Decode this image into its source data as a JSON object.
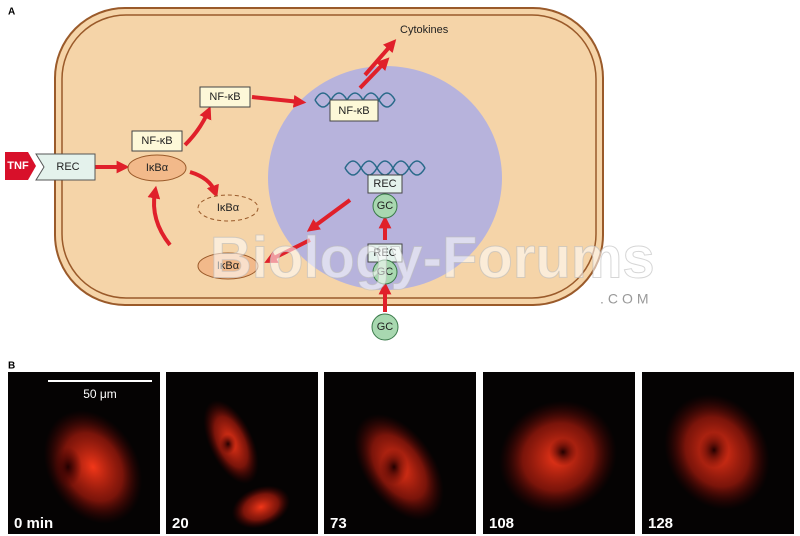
{
  "panel_a": {
    "label": "A",
    "ligand": "TNF",
    "receptor": "REC",
    "complex_nfkb": "NF-κB",
    "complex_ikba": "IκBα",
    "free_nfkb": "NF-κB",
    "nuclear_nfkb": "NF-κB",
    "output": "Cytokines",
    "degraded_ikba": "IκBα",
    "new_ikba": "IκBα",
    "nuclear_rec": "REC",
    "nuclear_gc": "GC",
    "cyto_rec": "REC",
    "cyto_gc": "GC",
    "outside_gc": "GC"
  },
  "watermark": {
    "text": "Biology-Forums",
    "suffix": ".COM"
  },
  "panel_b": {
    "label": "B",
    "scale_bar": "50 μm",
    "frames": [
      "0 min",
      "20",
      "73",
      "108",
      "128"
    ]
  }
}
